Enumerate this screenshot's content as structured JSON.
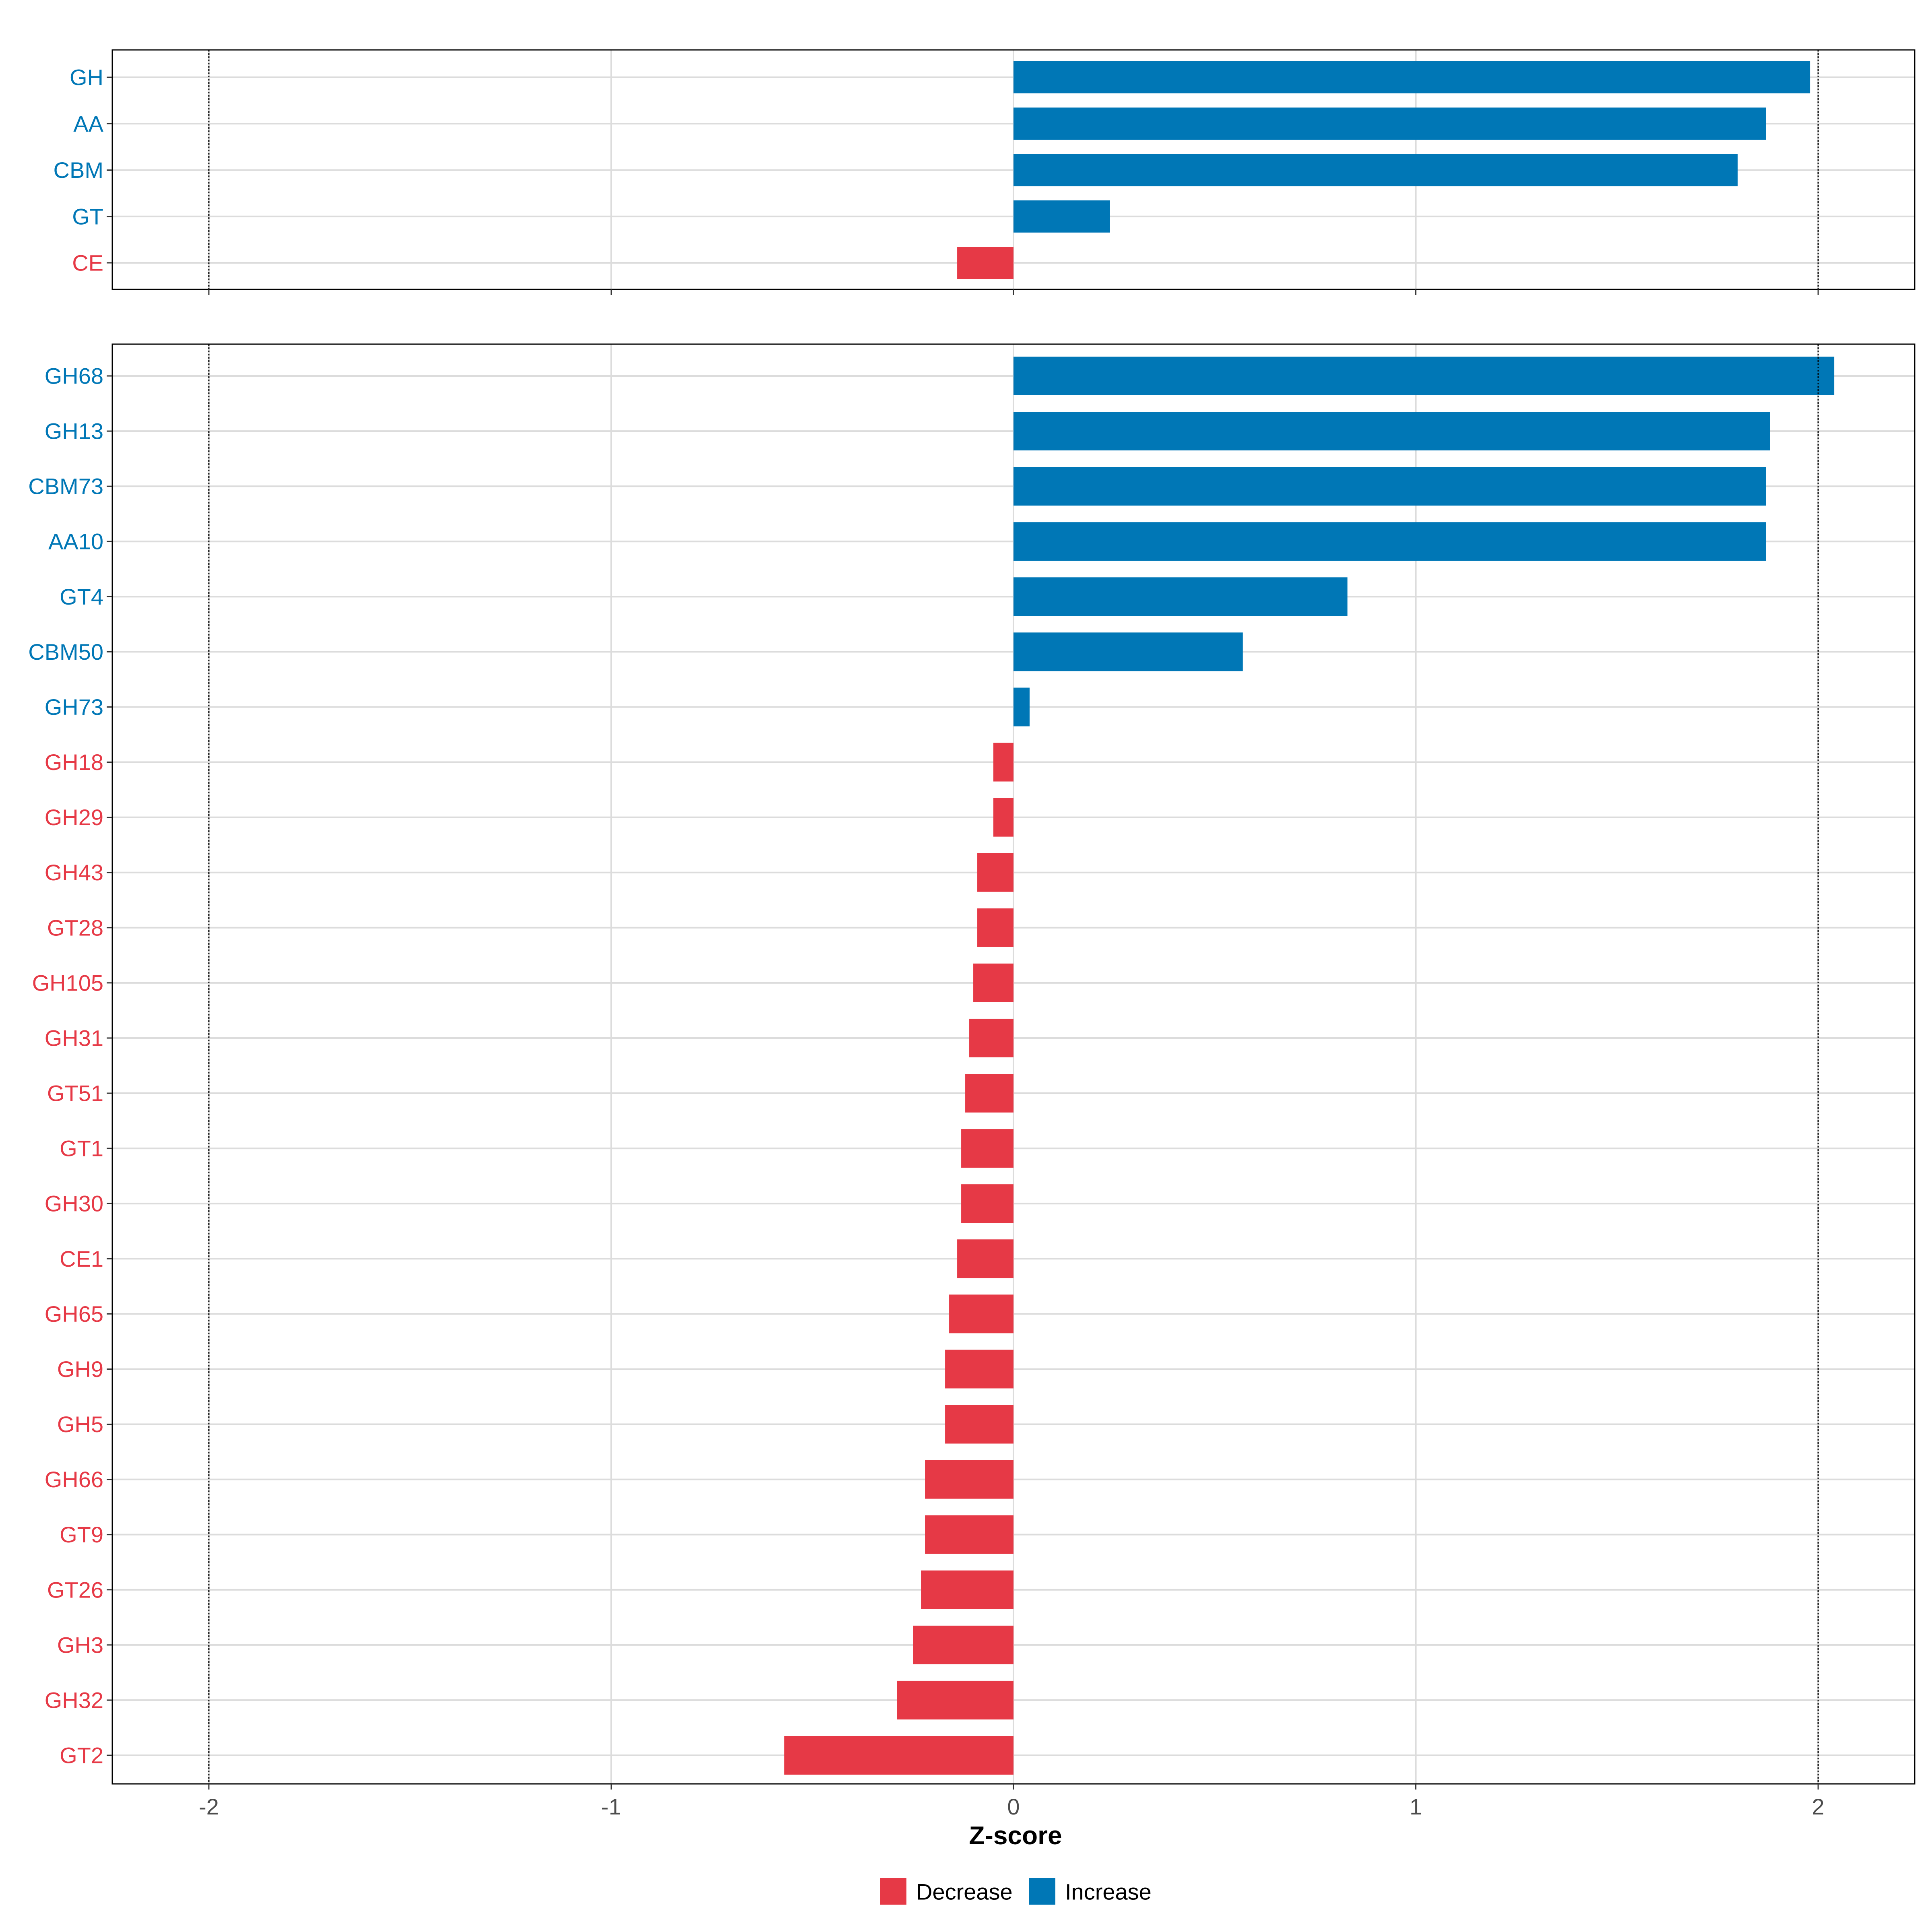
{
  "colors": {
    "increase": "#0077B6",
    "decrease": "#E63946"
  },
  "chart_data": [
    {
      "type": "bar",
      "orientation": "horizontal",
      "panel": "top",
      "categories": [
        "GH",
        "AA",
        "CBM",
        "GT",
        "CE"
      ],
      "values": [
        1.98,
        1.87,
        1.8,
        0.24,
        -0.14
      ],
      "xlim": [
        -2.24,
        2.24
      ],
      "reference_lines": [
        -2,
        2
      ],
      "grid": true
    },
    {
      "type": "bar",
      "orientation": "horizontal",
      "panel": "bottom",
      "categories": [
        "GH68",
        "GH13",
        "CBM73",
        "AA10",
        "GT4",
        "CBM50",
        "GH73",
        "GH18",
        "GH29",
        "GH43",
        "GT28",
        "GH105",
        "GH31",
        "GT51",
        "GT1",
        "GH30",
        "CE1",
        "GH65",
        "GH9",
        "GH5",
        "GH66",
        "GT9",
        "GT26",
        "GH3",
        "GH32",
        "GT2"
      ],
      "values": [
        2.04,
        1.88,
        1.87,
        1.87,
        0.83,
        0.57,
        0.04,
        -0.05,
        -0.05,
        -0.09,
        -0.09,
        -0.1,
        -0.11,
        -0.12,
        -0.13,
        -0.13,
        -0.14,
        -0.16,
        -0.17,
        -0.17,
        -0.22,
        -0.22,
        -0.23,
        -0.25,
        -0.29,
        -0.57
      ],
      "xlim": [
        -2.24,
        2.24
      ],
      "reference_lines": [
        -2,
        2
      ],
      "grid": true
    }
  ],
  "x_axis": {
    "label": "Z-score",
    "ticks": [
      "-2",
      "-1",
      "0",
      "1",
      "2"
    ],
    "tick_values": [
      -2,
      -1,
      0,
      1,
      2
    ]
  },
  "legend": {
    "position": "bottom",
    "items": [
      {
        "label": "Decrease",
        "key": "decrease"
      },
      {
        "label": "Increase",
        "key": "increase"
      }
    ]
  }
}
